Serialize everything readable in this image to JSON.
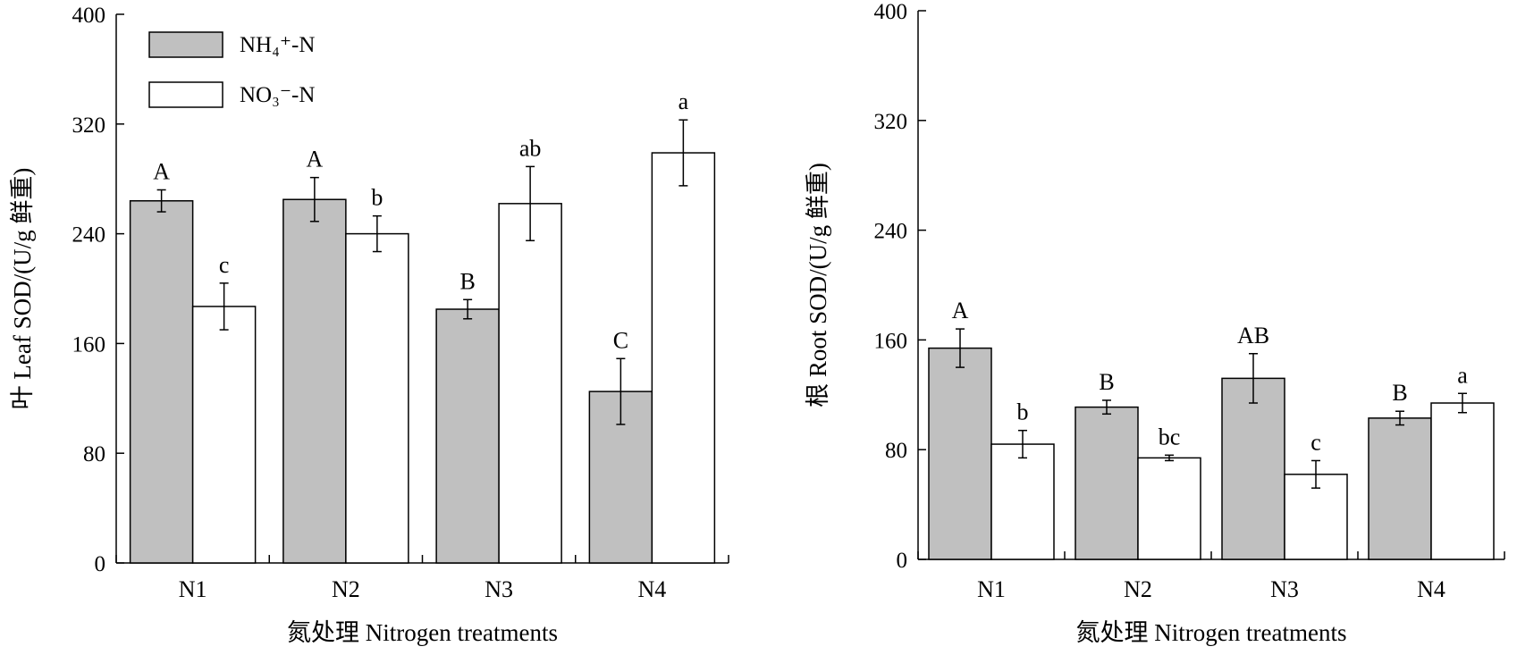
{
  "legend": {
    "items": [
      {
        "label": "NH₄⁺-N",
        "color": "#c0c0c0"
      },
      {
        "label": "NO₃⁻-N",
        "color": "#ffffff"
      }
    ]
  },
  "chart_data": [
    {
      "type": "bar",
      "categories": [
        "N1",
        "N2",
        "N3",
        "N4"
      ],
      "xlabel": "氮处理 Nitrogen treatments",
      "ylabel": "叶 Leaf SOD/(U/g 鲜重)",
      "ylim": [
        0,
        400
      ],
      "yticks": [
        0,
        80,
        160,
        240,
        320,
        400
      ],
      "series": [
        {
          "name": "NH₄⁺-N",
          "color": "#c0c0c0",
          "values": [
            264,
            265,
            185,
            125
          ],
          "errors": [
            8,
            16,
            7,
            24
          ],
          "labels": [
            "A",
            "A",
            "B",
            "C"
          ]
        },
        {
          "name": "NO₃⁻-N",
          "color": "#ffffff",
          "values": [
            187,
            240,
            262,
            299
          ],
          "errors": [
            17,
            13,
            27,
            24
          ],
          "labels": [
            "c",
            "b",
            "ab",
            "a"
          ]
        }
      ]
    },
    {
      "type": "bar",
      "categories": [
        "N1",
        "N2",
        "N3",
        "N4"
      ],
      "xlabel": "氮处理 Nitrogen treatments",
      "ylabel": "根 Root SOD/(U/g 鲜重)",
      "ylim": [
        0,
        400
      ],
      "yticks": [
        0,
        80,
        160,
        240,
        320,
        400
      ],
      "series": [
        {
          "name": "NH₄⁺-N",
          "color": "#c0c0c0",
          "values": [
            154,
            111,
            132,
            103
          ],
          "errors": [
            14,
            5,
            18,
            5
          ],
          "labels": [
            "A",
            "B",
            "AB",
            "B"
          ]
        },
        {
          "name": "NO₃⁻-N",
          "color": "#ffffff",
          "values": [
            84,
            74,
            62,
            114
          ],
          "errors": [
            10,
            2,
            10,
            7
          ],
          "labels": [
            "b",
            "bc",
            "c",
            "a"
          ]
        }
      ]
    }
  ]
}
